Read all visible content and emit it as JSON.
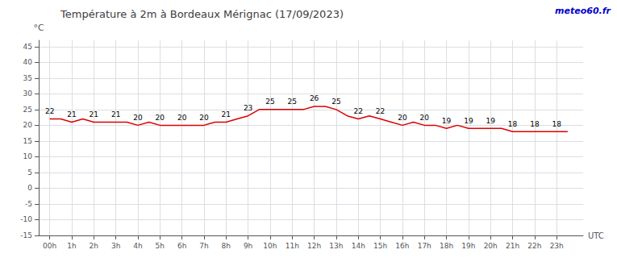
{
  "chart_data": {
    "type": "line",
    "title": "Température à 2m à Bordeaux Mérignac (17/09/2023)",
    "ylabel": "°C",
    "xlabel": "UTC",
    "annotations": [
      "meteo60.fr"
    ],
    "x": [
      0,
      0.5,
      1,
      1.5,
      2,
      2.5,
      3,
      3.5,
      4,
      4.5,
      5,
      5.5,
      6,
      6.5,
      7,
      7.5,
      8,
      8.5,
      9,
      9.5,
      10,
      10.5,
      11,
      11.5,
      12,
      12.5,
      13,
      13.5,
      14,
      14.5,
      15,
      15.5,
      16,
      16.5,
      17,
      17.5,
      18,
      18.5,
      19,
      19.5,
      20,
      20.5,
      21,
      21.5,
      22,
      22.5,
      23,
      23.5
    ],
    "values": [
      22,
      22,
      21,
      22,
      21,
      21,
      21,
      21,
      20,
      21,
      20,
      20,
      20,
      20,
      20,
      21,
      21,
      22,
      23,
      25,
      25,
      25,
      25,
      25,
      26,
      26,
      25,
      23,
      22,
      23,
      22,
      21,
      20,
      21,
      20,
      20,
      19,
      20,
      19,
      19,
      19,
      19,
      18,
      18,
      18,
      18,
      18,
      18
    ],
    "value_labels": [
      "22",
      null,
      "21",
      null,
      "21",
      null,
      "21",
      null,
      "20",
      null,
      "20",
      null,
      "20",
      null,
      "20",
      null,
      "21",
      null,
      "23",
      null,
      "25",
      null,
      "25",
      null,
      "26",
      null,
      "25",
      null,
      "22",
      null,
      "22",
      null,
      "20",
      null,
      "20",
      null,
      "19",
      null,
      "19",
      null,
      "19",
      null,
      "18",
      null,
      "18",
      null,
      "18",
      null
    ],
    "color": "#dd0000",
    "xlim": [
      -0.5,
      24.2
    ],
    "xticks": [
      {
        "value": 0,
        "label": "00h"
      },
      {
        "value": 1,
        "label": "1h"
      },
      {
        "value": 2,
        "label": "2h"
      },
      {
        "value": 3,
        "label": "3h"
      },
      {
        "value": 4,
        "label": "4h"
      },
      {
        "value": 5,
        "label": "5h"
      },
      {
        "value": 6,
        "label": "6h"
      },
      {
        "value": 7,
        "label": "7h"
      },
      {
        "value": 8,
        "label": "8h"
      },
      {
        "value": 9,
        "label": "9h"
      },
      {
        "value": 10,
        "label": "10h"
      },
      {
        "value": 11,
        "label": "11h"
      },
      {
        "value": 12,
        "label": "12h"
      },
      {
        "value": 13,
        "label": "13h"
      },
      {
        "value": 14,
        "label": "14h"
      },
      {
        "value": 15,
        "label": "15h"
      },
      {
        "value": 16,
        "label": "16h"
      },
      {
        "value": 17,
        "label": "17h"
      },
      {
        "value": 18,
        "label": "18h"
      },
      {
        "value": 19,
        "label": "19h"
      },
      {
        "value": 20,
        "label": "20h"
      },
      {
        "value": 21,
        "label": "21h"
      },
      {
        "value": 22,
        "label": "22h"
      },
      {
        "value": 23,
        "label": "23h"
      }
    ],
    "ylim": [
      -15,
      47
    ],
    "yticks": [
      -15,
      -10,
      -5,
      0,
      5,
      10,
      15,
      20,
      25,
      30,
      35,
      40,
      45
    ],
    "grid": true
  }
}
